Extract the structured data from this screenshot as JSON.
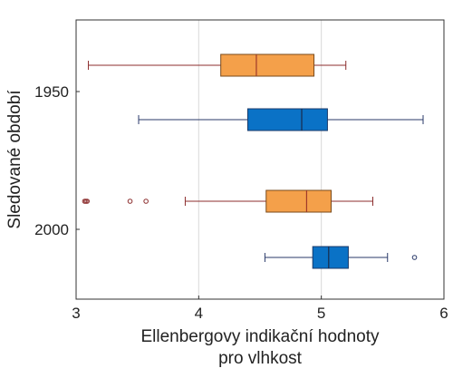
{
  "chart_data": {
    "type": "boxplot",
    "orientation": "horizontal",
    "xlabel": [
      "Ellenbergovy indikační hodnoty",
      "pro vlhkost"
    ],
    "ylabel": "Sledované období",
    "xlim": [
      3,
      6
    ],
    "xticks": [
      "3",
      "4",
      "5",
      "6"
    ],
    "grid": "vertical",
    "groups": [
      {
        "label": "1950",
        "boxes": [
          {
            "color": "#f4a04a",
            "edge": "#7a4a1a",
            "median_color": "#a03a2a",
            "whisker_color": "#8c2d2d",
            "min": 3.1,
            "q1": 4.18,
            "median": 4.47,
            "q3": 4.94,
            "max": 5.2,
            "outliers": []
          },
          {
            "color": "#0a72c6",
            "edge": "#1a3a6a",
            "median_color": "#1a2a4a",
            "whisker_color": "#2a3a6a",
            "min": 3.51,
            "q1": 4.4,
            "median": 4.84,
            "q3": 5.05,
            "max": 5.83,
            "outliers": []
          }
        ]
      },
      {
        "label": "2000",
        "boxes": [
          {
            "color": "#f4a04a",
            "edge": "#7a4a1a",
            "median_color": "#a03a2a",
            "whisker_color": "#8c2d2d",
            "min": 3.89,
            "q1": 4.55,
            "median": 4.88,
            "q3": 5.08,
            "max": 5.42,
            "outliers": [
              3.07,
              3.08,
              3.09,
              3.44,
              3.57
            ]
          },
          {
            "color": "#0a72c6",
            "edge": "#1a3a6a",
            "median_color": "#1a2a4a",
            "whisker_color": "#2a3a6a",
            "min": 4.54,
            "q1": 4.93,
            "median": 5.06,
            "q3": 5.22,
            "max": 5.54,
            "outliers": [
              5.76
            ]
          }
        ]
      }
    ]
  }
}
